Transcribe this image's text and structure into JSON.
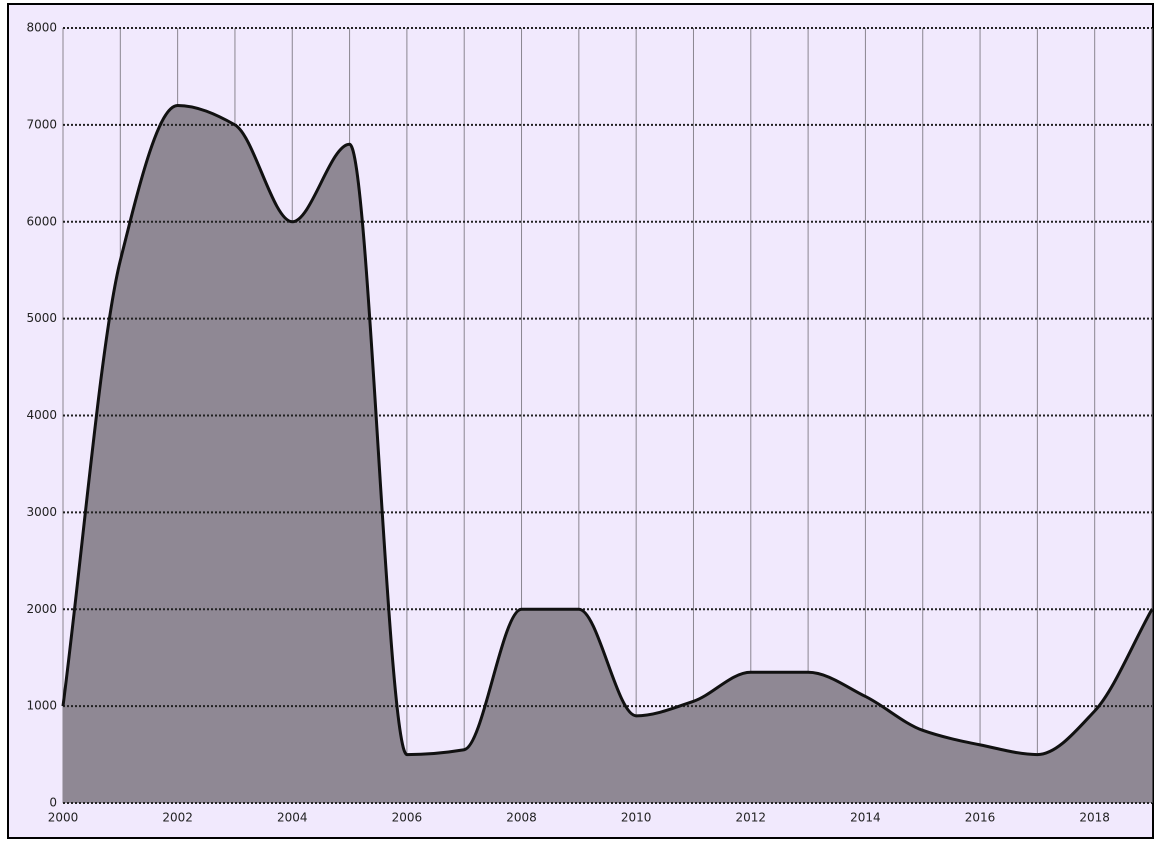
{
  "chart_data": {
    "type": "area",
    "x": [
      2000,
      2001,
      2002,
      2003,
      2004,
      2005,
      2006,
      2007,
      2008,
      2009,
      2010,
      2011,
      2012,
      2013,
      2014,
      2015,
      2016,
      2017,
      2018,
      2019
    ],
    "series": [
      {
        "color": "#8f8894",
        "values": [
          1000,
          5600,
          7200,
          7000,
          6000,
          6800,
          500,
          550,
          2000,
          2000,
          900,
          1050,
          1350,
          1350,
          1100,
          750,
          600,
          500,
          950,
          2000
        ]
      }
    ],
    "xlim": [
      2000,
      2019
    ],
    "xticks": [
      2000,
      2002,
      2004,
      2006,
      2008,
      2010,
      2012,
      2014,
      2016,
      2018
    ],
    "ylim": [
      0,
      8000
    ],
    "yticks": [
      0,
      1000,
      2000,
      3000,
      4000,
      5000,
      6000,
      7000,
      8000
    ],
    "grid": true
  }
}
